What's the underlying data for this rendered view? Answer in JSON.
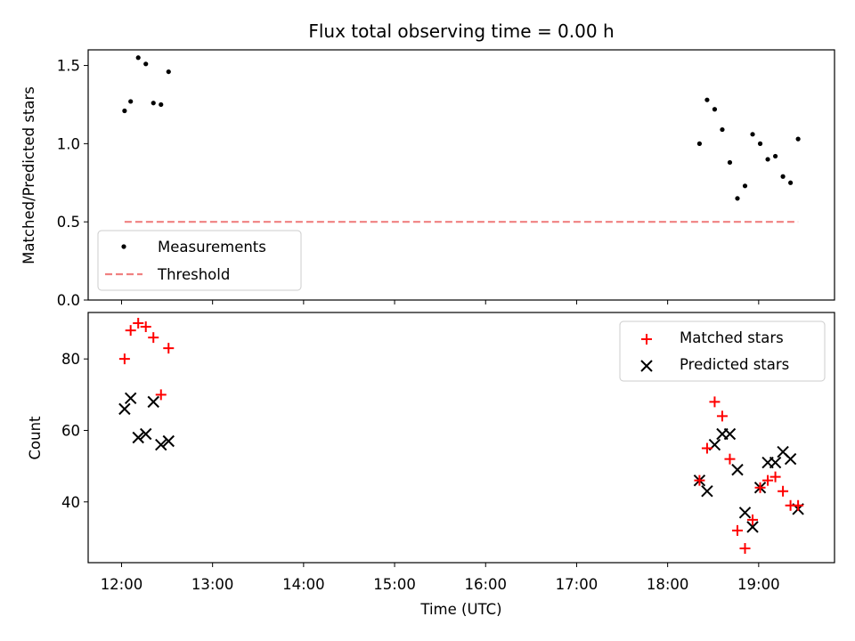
{
  "title": "Flux total observing time = 0.00 h",
  "xlabel": "Time (UTC)",
  "x_ticks": [
    "12:00",
    "13:00",
    "14:00",
    "15:00",
    "16:00",
    "17:00",
    "18:00",
    "19:00"
  ],
  "colors": {
    "matched": "#ff0000",
    "predicted": "#000000",
    "threshold": "#f08080",
    "measurements": "#000000"
  },
  "chart_data": [
    {
      "type": "scatter",
      "ylabel": "Matched/Predicted stars",
      "xlim": [
        "11:38",
        "19:50"
      ],
      "ylim": [
        0.0,
        1.6
      ],
      "y_ticks": [
        "0.0",
        "0.5",
        "1.0",
        "1.5"
      ],
      "legend_position": "lower-left",
      "legend": [
        "Measurements",
        "Threshold"
      ],
      "series": [
        {
          "name": "Measurements",
          "marker": "dot",
          "x": [
            "12:02",
            "12:06",
            "12:11",
            "12:16",
            "12:21",
            "12:26",
            "12:31",
            "18:21",
            "18:26",
            "18:31",
            "18:36",
            "18:41",
            "18:46",
            "18:51",
            "18:56",
            "19:01",
            "19:06",
            "19:11",
            "19:16",
            "19:21",
            "19:26"
          ],
          "y": [
            1.21,
            1.27,
            1.55,
            1.51,
            1.26,
            1.25,
            1.46,
            1.0,
            1.28,
            1.22,
            1.09,
            0.88,
            0.65,
            0.73,
            1.06,
            1.0,
            0.9,
            0.92,
            0.79,
            0.75,
            1.03
          ]
        },
        {
          "name": "Threshold",
          "style": "dashed",
          "x": [
            "12:02",
            "19:26"
          ],
          "y": [
            0.5,
            0.5
          ]
        }
      ]
    },
    {
      "type": "scatter",
      "ylabel": "Count",
      "xlim": [
        "11:38",
        "19:50"
      ],
      "ylim": [
        23,
        93
      ],
      "y_ticks": [
        "40",
        "60",
        "80"
      ],
      "legend_position": "upper-right",
      "legend": [
        "Matched stars",
        "Predicted stars"
      ],
      "series": [
        {
          "name": "Matched stars",
          "marker": "plus",
          "x": [
            "12:02",
            "12:06",
            "12:11",
            "12:16",
            "12:21",
            "12:26",
            "12:31",
            "18:21",
            "18:26",
            "18:31",
            "18:36",
            "18:41",
            "18:46",
            "18:51",
            "18:56",
            "19:01",
            "19:06",
            "19:11",
            "19:16",
            "19:21",
            "19:26"
          ],
          "y": [
            80,
            88,
            90,
            89,
            86,
            70,
            83,
            46,
            55,
            68,
            64,
            52,
            32,
            27,
            35,
            44,
            46,
            47,
            43,
            39,
            39
          ]
        },
        {
          "name": "Predicted stars",
          "marker": "x",
          "x": [
            "12:02",
            "12:06",
            "12:11",
            "12:16",
            "12:21",
            "12:26",
            "12:31",
            "18:21",
            "18:26",
            "18:31",
            "18:36",
            "18:41",
            "18:46",
            "18:51",
            "18:56",
            "19:01",
            "19:06",
            "19:11",
            "19:16",
            "19:21",
            "19:26"
          ],
          "y": [
            66,
            69,
            58,
            59,
            68,
            56,
            57,
            46,
            43,
            56,
            59,
            59,
            49,
            37,
            33,
            44,
            51,
            51,
            54,
            52,
            38
          ]
        }
      ]
    }
  ]
}
